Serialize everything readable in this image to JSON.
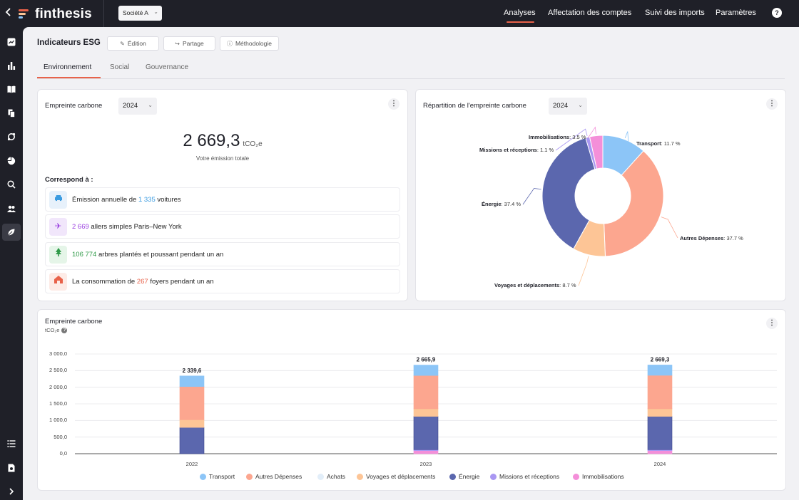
{
  "app": {
    "logo_text": "finthesis",
    "company": "Société A",
    "nav": [
      "Analyses",
      "Affectation des comptes",
      "Suivi des imports",
      "Paramètres"
    ],
    "help": "?"
  },
  "header": {
    "title": "Indicateurs ESG",
    "buttons": [
      "Édition",
      "Partage",
      "Méthodologie"
    ]
  },
  "tabs": [
    "Environnement",
    "Social",
    "Gouvernance"
  ],
  "footprint_card": {
    "title": "Empreinte carbone",
    "year": "2024",
    "value": "2 669,3",
    "unit": "tCO₂e",
    "subtitle": "Votre émission totale",
    "corresponds_title": "Correspond à :",
    "equivalents": [
      {
        "prefix": "Émission annuelle de ",
        "num": "1 335",
        "suffix": " voitures",
        "color": "#3a9be0"
      },
      {
        "prefix": "",
        "num": "2 669",
        "suffix": " allers simples Paris–New York",
        "color": "#9a3fe0"
      },
      {
        "prefix": "",
        "num": "106 774",
        "suffix": " arbres plantés et poussant pendant un an",
        "color": "#2f9a48"
      },
      {
        "prefix": "La consommation de ",
        "num": "267",
        "suffix": " foyers pendant un an",
        "color": "#e8624a"
      }
    ]
  },
  "distribution_card": {
    "title": "Répartition de l'empreinte carbone",
    "year": "2024"
  },
  "bar_card": {
    "title": "Empreinte carbone",
    "unit": "tCO₂e"
  },
  "colors": {
    "accent": "#e8624a",
    "Transport": "#8cc5f7",
    "Autres Dépenses": "#fca68f",
    "Achats": "#e2eef9",
    "Voyages et déplacements": "#fdc596",
    "Énergie": "#5b67ae",
    "Missions et réceptions": "#a997f2",
    "Immobilisations": "#f48fd9"
  },
  "chart_data": [
    {
      "type": "pie",
      "title": "",
      "slices": [
        {
          "name": "Transport",
          "value": 11.7,
          "label": "11.7 %"
        },
        {
          "name": "Autres Dépenses",
          "value": 37.7,
          "label": "37.7 %"
        },
        {
          "name": "Voyages et déplacements",
          "value": 8.7,
          "label": "8.7 %"
        },
        {
          "name": "Énergie",
          "value": 37.4,
          "label": "37.4 %"
        },
        {
          "name": "Missions et réceptions",
          "value": 1.1,
          "label": "1.1 %"
        },
        {
          "name": "Immobilisations",
          "value": 3.5,
          "label": "3.5 %"
        }
      ]
    },
    {
      "type": "bar",
      "stacked": true,
      "title": "Empreinte carbone",
      "ylabel": "tCO₂e",
      "ylim": [
        0,
        3000
      ],
      "yticks": [
        "0,0",
        "500,0",
        "1 000,0",
        "1 500,0",
        "2 000,0",
        "2 500,0",
        "3 000,0"
      ],
      "categories": [
        "2022",
        "2023",
        "2024"
      ],
      "totals": [
        "2 339,6",
        "2 665,9",
        "2 669,3"
      ],
      "series": [
        {
          "name": "Immobilisations",
          "values": [
            0,
            93,
            93
          ]
        },
        {
          "name": "Missions et réceptions",
          "values": [
            0,
            30,
            30
          ]
        },
        {
          "name": "Énergie",
          "values": [
            790,
            1000,
            1000
          ]
        },
        {
          "name": "Voyages et déplacements",
          "values": [
            230,
            230,
            230
          ]
        },
        {
          "name": "Achats",
          "values": [
            0,
            0,
            0
          ]
        },
        {
          "name": "Autres Dépenses",
          "values": [
            1000,
            1000,
            1005
          ]
        },
        {
          "name": "Transport",
          "values": [
            320,
            313,
            311
          ]
        }
      ],
      "legend": [
        "Transport",
        "Autres Dépenses",
        "Achats",
        "Voyages et déplacements",
        "Énergie",
        "Missions et réceptions",
        "Immobilisations"
      ]
    }
  ]
}
